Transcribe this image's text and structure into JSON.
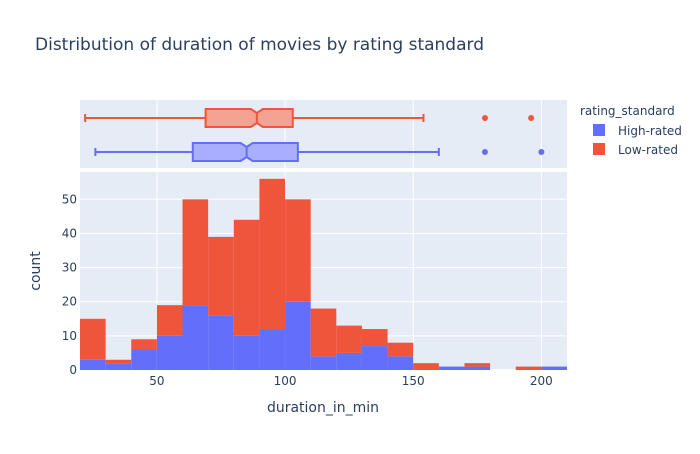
{
  "chart_data": {
    "type": "bar",
    "title": "Distribution of duration of movies by rating standard",
    "xlabel": "duration_in_min",
    "ylabel": "count",
    "barmode": "stacked",
    "xlim": [
      20,
      210
    ],
    "ylim": [
      0,
      58
    ],
    "x_ticks": [
      50,
      100,
      150,
      200
    ],
    "y_ticks": [
      0,
      10,
      20,
      30,
      40,
      50
    ],
    "bin_edges": [
      20,
      30,
      40,
      50,
      60,
      70,
      80,
      90,
      100,
      110,
      120,
      130,
      140,
      150,
      160,
      170,
      180,
      190,
      200,
      210
    ],
    "legend": {
      "title": "rating_standard",
      "position": "top-right"
    },
    "series": [
      {
        "name": "High-rated",
        "color": "#636efa",
        "values": [
          3,
          2,
          6,
          10,
          19,
          16,
          10,
          12,
          20,
          4,
          5,
          7,
          4,
          0,
          1,
          1,
          0,
          0,
          1
        ]
      },
      {
        "name": "Low-rated",
        "color": "#ef553b",
        "values": [
          12,
          1,
          3,
          9,
          31,
          23,
          34,
          44,
          30,
          14,
          8,
          5,
          4,
          2,
          0,
          1,
          0,
          1,
          0
        ]
      }
    ],
    "box_plots": [
      {
        "name": "Low-rated",
        "color": "#ef553b",
        "min": 22,
        "q1": 69,
        "median": 89,
        "q3": 103,
        "max": 154,
        "outliers": [
          178,
          196
        ]
      },
      {
        "name": "High-rated",
        "color": "#636efa",
        "min": 26,
        "q1": 64,
        "median": 85,
        "q3": 105,
        "max": 160,
        "outliers": [
          178,
          200
        ]
      }
    ]
  }
}
